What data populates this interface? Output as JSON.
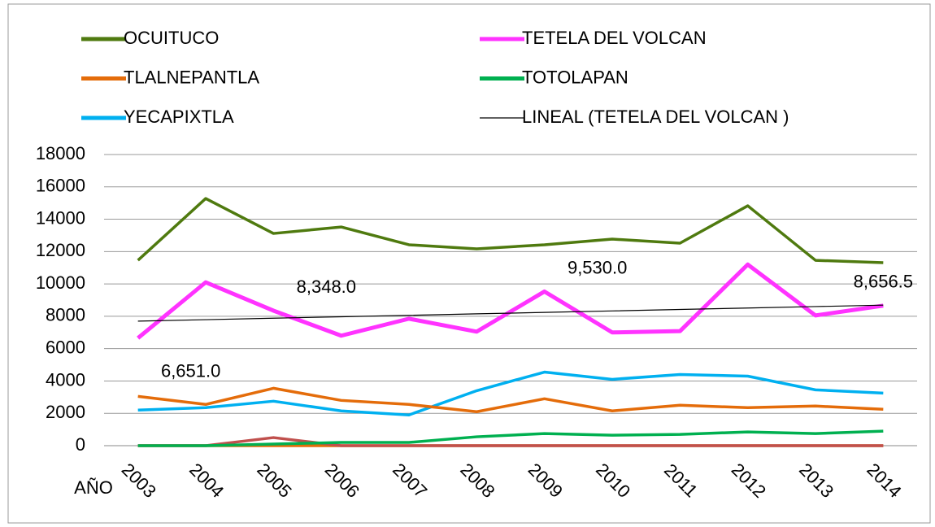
{
  "chart_data": {
    "type": "line",
    "x_label": "AÑO",
    "categories": [
      "2003",
      "2004",
      "2005",
      "2006",
      "2007",
      "2008",
      "2009",
      "2010",
      "2011",
      "2012",
      "2013",
      "2014"
    ],
    "series": [
      {
        "name": "OCUITUCO",
        "color": "#4f7a0f",
        "width": 3.5,
        "values": [
          11460,
          15280,
          13120,
          13520,
          12420,
          12170,
          12420,
          12770,
          12520,
          14830,
          11460,
          11310
        ]
      },
      {
        "name": "TETELA DEL VOLCAN",
        "color": "#ff33ff",
        "width": 5,
        "values": [
          6651,
          10100,
          8348,
          6800,
          7850,
          7050,
          9530,
          7000,
          7080,
          11200,
          8050,
          8656.5
        ],
        "value_labels": [
          "6,651.0",
          null,
          "8,348.0",
          null,
          null,
          null,
          "9,530.0",
          null,
          null,
          null,
          null,
          "8,656.5"
        ]
      },
      {
        "name": "TLALNEPANTLA",
        "color": "#e46c0a",
        "width": 3.5,
        "values": [
          3050,
          2550,
          3550,
          2800,
          2550,
          2100,
          2900,
          2150,
          2500,
          2350,
          2450,
          2250
        ]
      },
      {
        "name": "TOTOLAPAN",
        "color": "#00b050",
        "width": 3.5,
        "values": [
          0,
          0,
          100,
          200,
          200,
          550,
          750,
          650,
          700,
          850,
          750,
          900
        ]
      },
      {
        "name": "YECAPIXTLA",
        "color": "#00b0f0",
        "width": 3.5,
        "values": [
          2200,
          2350,
          2750,
          2150,
          1900,
          3400,
          4550,
          4100,
          4400,
          4300,
          3450,
          3250
        ]
      },
      {
        "name": "LINEAL (TETELA DEL VOLCAN )",
        "color": "#000000",
        "width": 1.2,
        "values": [
          7700,
          7790,
          7880,
          7970,
          8060,
          8150,
          8240,
          8330,
          8420,
          8510,
          8600,
          8690
        ]
      },
      {
        "color": "#c0504d",
        "width": 3.5,
        "values": [
          0,
          0,
          500,
          0,
          0,
          0,
          0,
          0,
          0,
          0,
          0,
          0
        ]
      },
      {
        "color": "#e46c0a",
        "width": 3.5,
        "values": [
          0,
          0,
          0,
          0,
          0,
          0,
          0,
          0,
          0,
          0,
          0,
          0
        ]
      }
    ],
    "ylim": [
      0,
      18000
    ],
    "yticks": [
      0,
      2000,
      4000,
      6000,
      8000,
      10000,
      12000,
      14000,
      16000,
      18000
    ],
    "grid": true
  }
}
